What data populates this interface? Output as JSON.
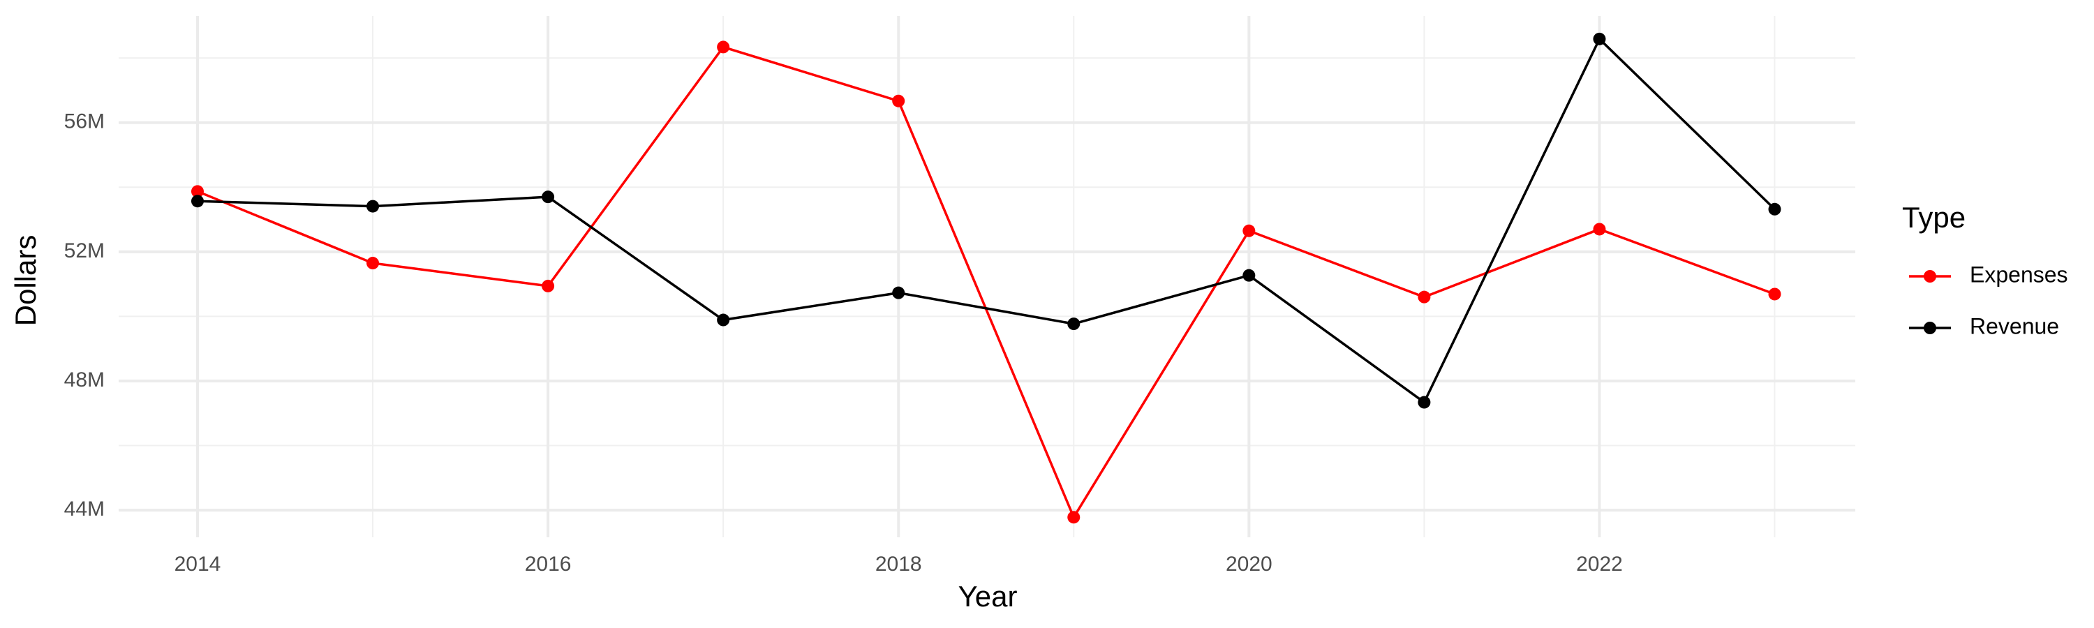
{
  "chart_data": {
    "type": "line",
    "x_label": "Year",
    "y_label": "Dollars",
    "x": [
      2014,
      2015,
      2016,
      2017,
      2018,
      2019,
      2020,
      2021,
      2022,
      2023
    ],
    "series": [
      {
        "name": "Expenses",
        "color": "#ff0000",
        "values": [
          53870000,
          51650000,
          50940000,
          58340000,
          56670000,
          43780000,
          52650000,
          50600000,
          52700000,
          50690000
        ]
      },
      {
        "name": "Revenue",
        "color": "#000000",
        "values": [
          53570000,
          53410000,
          53700000,
          49890000,
          50730000,
          49770000,
          51270000,
          47340000,
          58590000,
          53320000
        ]
      }
    ],
    "xlim": [
      2013.55,
      2023.46
    ],
    "ylim": [
      43160000,
      59300000
    ],
    "xticks": [
      2014,
      2016,
      2018,
      2020,
      2022
    ],
    "yticks": [
      {
        "value": 44000000,
        "label": "44M"
      },
      {
        "value": 48000000,
        "label": "48M"
      },
      {
        "value": 52000000,
        "label": "52M"
      },
      {
        "value": 56000000,
        "label": "56M"
      }
    ],
    "xminor": [
      2015,
      2017,
      2019,
      2021,
      2023
    ],
    "yminor": [
      46000000,
      50000000,
      54000000,
      58000000
    ],
    "grid": true,
    "legend_title": "Type",
    "legend_position": "right"
  }
}
